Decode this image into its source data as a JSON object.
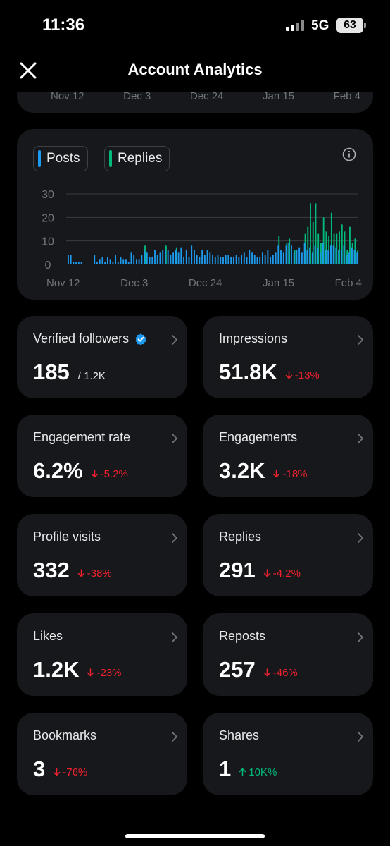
{
  "status_bar": {
    "time": "11:36",
    "network": "5G",
    "battery": "63"
  },
  "header": {
    "title": "Account Analytics"
  },
  "top_axis": [
    "Nov 12",
    "Dec 3",
    "Dec 24",
    "Jan 15",
    "Feb 4"
  ],
  "chart": {
    "legend": {
      "posts": "Posts",
      "replies": "Replies"
    },
    "x_ticks": [
      "Nov 12",
      "Dec 3",
      "Dec 24",
      "Jan 15",
      "Feb 4"
    ],
    "y_ticks": [
      "0",
      "10",
      "20",
      "30"
    ]
  },
  "chart_data": {
    "type": "bar",
    "x_ticks": [
      "Nov 12",
      "Dec 3",
      "Dec 24",
      "Jan 15",
      "Feb 4"
    ],
    "ylim": [
      0,
      30
    ],
    "y_ticks": [
      0,
      10,
      20,
      30
    ],
    "grid": true,
    "legend": "top-left",
    "colors": {
      "posts": "#1d9bf0",
      "replies": "#00ba7c"
    },
    "series": [
      {
        "name": "Posts",
        "values": [
          4,
          4,
          1,
          1,
          1,
          1,
          0,
          0,
          0,
          0,
          4,
          1,
          2,
          3,
          1,
          3,
          2,
          1,
          4,
          1,
          3,
          2,
          2,
          1,
          5,
          4,
          2,
          2,
          4,
          6,
          5,
          3,
          3,
          6,
          4,
          5,
          6,
          6,
          6,
          4,
          5,
          6,
          5,
          7,
          3,
          6,
          3,
          8,
          6,
          4,
          3,
          6,
          4,
          6,
          5,
          4,
          3,
          4,
          3,
          3,
          4,
          4,
          3,
          3,
          4,
          3,
          4,
          5,
          3,
          6,
          5,
          4,
          3,
          3,
          5,
          4,
          6,
          3,
          4,
          5,
          8,
          6,
          5,
          8,
          9,
          8,
          5,
          6,
          7,
          5,
          9,
          6,
          7,
          5,
          8,
          7,
          5,
          9,
          6,
          6,
          8,
          8,
          7,
          6,
          6,
          8,
          4,
          5,
          7,
          6,
          5
        ]
      },
      {
        "name": "Replies",
        "values": [
          0,
          0,
          0,
          0,
          0,
          0,
          0,
          0,
          0,
          0,
          0,
          0,
          0,
          0,
          0,
          0,
          0,
          0,
          0,
          0,
          0,
          0,
          0,
          0,
          0,
          0,
          0,
          0,
          0,
          2,
          0,
          0,
          0,
          0,
          0,
          0,
          0,
          2,
          0,
          0,
          0,
          1,
          0,
          0,
          0,
          0,
          0,
          0,
          0,
          0,
          0,
          0,
          0,
          0,
          0,
          0,
          0,
          0,
          0,
          0,
          0,
          0,
          0,
          0,
          0,
          0,
          0,
          0,
          0,
          0,
          0,
          0,
          0,
          0,
          0,
          0,
          0,
          0,
          0,
          0,
          4,
          0,
          0,
          1,
          2,
          0,
          1,
          0,
          0,
          0,
          4,
          10,
          19,
          13,
          18,
          6,
          4,
          11,
          8,
          6,
          14,
          5,
          6,
          8,
          11,
          6,
          2,
          11,
          2,
          5,
          1
        ]
      }
    ]
  },
  "metrics": [
    {
      "title": "Verified followers",
      "value": "185",
      "sub": "/ 1.2K",
      "change": "",
      "direction": ""
    },
    {
      "title": "Impressions",
      "value": "51.8K",
      "sub": "",
      "change": "-13%",
      "direction": "down"
    },
    {
      "title": "Engagement rate",
      "value": "6.2%",
      "sub": "",
      "change": "-5.2%",
      "direction": "down"
    },
    {
      "title": "Engagements",
      "value": "3.2K",
      "sub": "",
      "change": "-18%",
      "direction": "down"
    },
    {
      "title": "Profile visits",
      "value": "332",
      "sub": "",
      "change": "-38%",
      "direction": "down"
    },
    {
      "title": "Replies",
      "value": "291",
      "sub": "",
      "change": "-4.2%",
      "direction": "down"
    },
    {
      "title": "Likes",
      "value": "1.2K",
      "sub": "",
      "change": "-23%",
      "direction": "down"
    },
    {
      "title": "Reposts",
      "value": "257",
      "sub": "",
      "change": "-46%",
      "direction": "down"
    },
    {
      "title": "Bookmarks",
      "value": "3",
      "sub": "",
      "change": "-76%",
      "direction": "down"
    },
    {
      "title": "Shares",
      "value": "1",
      "sub": "",
      "change": "10K%",
      "direction": "up"
    }
  ],
  "colors": {
    "negative": "#f4212e",
    "positive": "#00ba7c",
    "verified": "#1d9bf0"
  }
}
